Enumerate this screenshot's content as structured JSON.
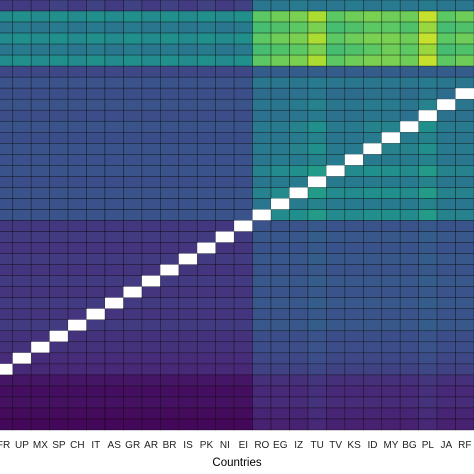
{
  "chart_data": {
    "type": "heatmap",
    "title": "",
    "xlabel": "Countries",
    "ylabel": "",
    "x_tick_labels": [
      "FR",
      "UP",
      "MX",
      "SP",
      "CH",
      "IT",
      "AS",
      "GR",
      "AR",
      "BR",
      "IS",
      "PK",
      "NI",
      "EI",
      "RO",
      "EG",
      "IZ",
      "TU",
      "TV",
      "KS",
      "ID",
      "MY",
      "BG",
      "PL",
      "JA",
      "RF"
    ],
    "colormap": "viridis",
    "diagonal_color": "#ffffff",
    "grid": true,
    "values": [
      [
        0.18,
        0.18,
        0.18,
        0.2,
        0.18,
        0.2,
        0.18,
        0.2,
        0.18,
        0.2,
        0.18,
        0.2,
        0.18,
        0.2,
        0.4,
        0.4,
        0.42,
        0.4,
        0.4,
        0.42,
        0.4,
        0.42,
        0.4,
        0.42,
        0.4,
        0.4
      ],
      [
        0.48,
        0.5,
        0.48,
        0.5,
        0.48,
        0.5,
        0.48,
        0.5,
        0.48,
        0.5,
        0.48,
        0.5,
        0.48,
        0.5,
        0.75,
        0.78,
        0.8,
        0.88,
        0.75,
        0.78,
        0.8,
        0.78,
        0.78,
        0.92,
        0.75,
        0.78
      ],
      [
        0.4,
        0.42,
        0.4,
        0.42,
        0.4,
        0.42,
        0.4,
        0.42,
        0.4,
        0.42,
        0.4,
        0.42,
        0.4,
        0.42,
        0.7,
        0.72,
        0.75,
        0.8,
        0.7,
        0.72,
        0.75,
        0.75,
        0.72,
        0.85,
        0.7,
        0.72
      ],
      [
        0.48,
        0.5,
        0.48,
        0.5,
        0.48,
        0.5,
        0.48,
        0.5,
        0.48,
        0.5,
        0.48,
        0.5,
        0.48,
        0.5,
        0.75,
        0.78,
        0.8,
        0.88,
        0.75,
        0.78,
        0.8,
        0.8,
        0.78,
        0.92,
        0.75,
        0.78
      ],
      [
        0.4,
        0.42,
        0.4,
        0.42,
        0.4,
        0.42,
        0.4,
        0.42,
        0.4,
        0.42,
        0.4,
        0.42,
        0.4,
        0.42,
        0.7,
        0.72,
        0.75,
        0.8,
        0.7,
        0.72,
        0.75,
        0.78,
        0.75,
        0.85,
        0.7,
        0.72
      ],
      [
        0.48,
        0.5,
        0.48,
        0.5,
        0.48,
        0.5,
        0.48,
        0.5,
        0.48,
        0.5,
        0.48,
        0.5,
        0.48,
        0.5,
        0.75,
        0.78,
        0.8,
        0.88,
        0.75,
        0.78,
        0.8,
        0.8,
        0.78,
        0.92,
        0.75,
        0.78
      ],
      [
        0.22,
        0.22,
        0.22,
        0.22,
        0.22,
        0.22,
        0.22,
        0.22,
        0.22,
        0.22,
        0.22,
        0.22,
        0.22,
        0.22,
        0.3,
        0.3,
        0.3,
        0.3,
        0.3,
        0.3,
        0.3,
        0.3,
        0.3,
        0.3,
        0.3,
        0.3
      ],
      [
        0.26,
        0.26,
        0.26,
        0.26,
        0.26,
        0.26,
        0.26,
        0.26,
        0.26,
        0.26,
        0.26,
        0.26,
        0.26,
        0.26,
        0.4,
        0.4,
        0.4,
        0.42,
        0.4,
        0.4,
        0.4,
        0.4,
        0.4,
        0.42,
        0.4,
        0.4
      ],
      [
        0.24,
        0.24,
        0.24,
        0.24,
        0.24,
        0.24,
        0.24,
        0.24,
        0.24,
        0.24,
        0.24,
        0.24,
        0.24,
        0.24,
        0.36,
        0.36,
        0.38,
        0.4,
        0.36,
        0.36,
        0.38,
        0.38,
        0.36,
        0.4,
        0.36,
        null
      ],
      [
        0.26,
        0.26,
        0.26,
        0.26,
        0.26,
        0.26,
        0.26,
        0.26,
        0.26,
        0.26,
        0.26,
        0.26,
        0.26,
        0.26,
        0.4,
        0.4,
        0.42,
        0.45,
        0.4,
        0.4,
        0.42,
        0.42,
        0.4,
        0.45,
        null,
        0.4
      ],
      [
        0.24,
        0.24,
        0.24,
        0.24,
        0.24,
        0.24,
        0.24,
        0.24,
        0.24,
        0.24,
        0.24,
        0.24,
        0.24,
        0.24,
        0.38,
        0.38,
        0.4,
        0.42,
        0.38,
        0.38,
        0.4,
        0.4,
        0.38,
        null,
        0.38,
        0.38
      ],
      [
        0.26,
        0.26,
        0.26,
        0.26,
        0.26,
        0.26,
        0.26,
        0.26,
        0.26,
        0.26,
        0.26,
        0.26,
        0.26,
        0.26,
        0.42,
        0.42,
        0.45,
        0.5,
        0.42,
        0.42,
        0.45,
        0.45,
        null,
        0.5,
        0.42,
        0.42
      ],
      [
        0.24,
        0.24,
        0.24,
        0.24,
        0.24,
        0.24,
        0.24,
        0.24,
        0.24,
        0.24,
        0.24,
        0.24,
        0.24,
        0.24,
        0.4,
        0.4,
        0.42,
        0.45,
        0.4,
        0.4,
        0.42,
        null,
        0.42,
        0.45,
        0.4,
        0.4
      ],
      [
        0.26,
        0.26,
        0.26,
        0.26,
        0.26,
        0.26,
        0.26,
        0.26,
        0.26,
        0.26,
        0.26,
        0.26,
        0.26,
        0.26,
        0.42,
        0.42,
        0.45,
        0.5,
        0.42,
        0.42,
        null,
        0.45,
        0.45,
        0.5,
        0.42,
        0.42
      ],
      [
        0.25,
        0.25,
        0.25,
        0.25,
        0.25,
        0.25,
        0.25,
        0.25,
        0.25,
        0.25,
        0.25,
        0.25,
        0.25,
        0.25,
        0.4,
        0.42,
        0.42,
        0.45,
        0.42,
        null,
        0.42,
        0.42,
        0.42,
        0.45,
        0.4,
        0.4
      ],
      [
        0.26,
        0.26,
        0.26,
        0.26,
        0.26,
        0.26,
        0.26,
        0.26,
        0.26,
        0.26,
        0.26,
        0.26,
        0.26,
        0.26,
        0.45,
        0.48,
        0.5,
        0.55,
        null,
        0.48,
        0.5,
        0.5,
        0.48,
        0.55,
        0.45,
        0.45
      ],
      [
        0.24,
        0.24,
        0.24,
        0.24,
        0.24,
        0.24,
        0.24,
        0.24,
        0.24,
        0.24,
        0.24,
        0.24,
        0.24,
        0.24,
        0.4,
        0.42,
        0.42,
        null,
        0.42,
        0.42,
        0.42,
        0.42,
        0.42,
        0.45,
        0.4,
        0.4
      ],
      [
        0.26,
        0.26,
        0.26,
        0.26,
        0.26,
        0.26,
        0.26,
        0.26,
        0.26,
        0.26,
        0.26,
        0.26,
        0.26,
        0.26,
        0.45,
        0.48,
        null,
        0.55,
        0.48,
        0.48,
        0.5,
        0.5,
        0.48,
        0.55,
        0.45,
        0.45
      ],
      [
        0.25,
        0.25,
        0.25,
        0.25,
        0.25,
        0.25,
        0.25,
        0.25,
        0.25,
        0.25,
        0.25,
        0.25,
        0.25,
        0.25,
        0.4,
        null,
        0.42,
        0.45,
        0.42,
        0.42,
        0.42,
        0.42,
        0.42,
        0.45,
        0.4,
        0.4
      ],
      [
        0.26,
        0.26,
        0.26,
        0.26,
        0.26,
        0.26,
        0.26,
        0.26,
        0.26,
        0.26,
        0.26,
        0.26,
        0.26,
        0.26,
        null,
        0.48,
        0.5,
        0.55,
        0.48,
        0.48,
        0.5,
        0.5,
        0.48,
        0.55,
        0.45,
        0.45
      ],
      [
        0.17,
        0.17,
        0.17,
        0.17,
        0.17,
        0.17,
        0.17,
        0.17,
        0.17,
        0.17,
        0.17,
        0.17,
        0.17,
        null,
        0.26,
        0.26,
        0.26,
        0.28,
        0.26,
        0.26,
        0.26,
        0.26,
        0.26,
        0.28,
        0.26,
        0.26
      ],
      [
        0.18,
        0.18,
        0.18,
        0.18,
        0.18,
        0.18,
        0.18,
        0.18,
        0.18,
        0.18,
        0.18,
        0.18,
        null,
        0.18,
        0.28,
        0.28,
        0.28,
        0.3,
        0.28,
        0.28,
        0.28,
        0.28,
        0.28,
        0.3,
        0.28,
        0.28
      ],
      [
        0.16,
        0.16,
        0.16,
        0.16,
        0.16,
        0.16,
        0.16,
        0.16,
        0.16,
        0.16,
        0.16,
        null,
        0.16,
        0.16,
        0.26,
        0.26,
        0.26,
        0.28,
        0.26,
        0.26,
        0.26,
        0.26,
        0.26,
        0.28,
        0.26,
        0.26
      ],
      [
        0.18,
        0.18,
        0.18,
        0.18,
        0.18,
        0.18,
        0.18,
        0.18,
        0.18,
        0.18,
        null,
        0.18,
        0.18,
        0.18,
        0.28,
        0.28,
        0.28,
        0.3,
        0.28,
        0.28,
        0.28,
        0.28,
        0.28,
        0.3,
        0.28,
        0.28
      ],
      [
        0.16,
        0.16,
        0.16,
        0.16,
        0.16,
        0.16,
        0.16,
        0.16,
        0.16,
        null,
        0.16,
        0.16,
        0.16,
        0.16,
        0.26,
        0.26,
        0.26,
        0.28,
        0.26,
        0.26,
        0.26,
        0.26,
        0.26,
        0.28,
        0.26,
        0.26
      ],
      [
        0.18,
        0.18,
        0.18,
        0.18,
        0.18,
        0.18,
        0.18,
        0.18,
        null,
        0.18,
        0.18,
        0.18,
        0.18,
        0.18,
        0.28,
        0.28,
        0.28,
        0.3,
        0.28,
        0.28,
        0.28,
        0.28,
        0.28,
        0.3,
        0.28,
        0.28
      ],
      [
        0.16,
        0.16,
        0.16,
        0.16,
        0.16,
        0.16,
        0.16,
        null,
        0.16,
        0.16,
        0.16,
        0.16,
        0.16,
        0.16,
        0.26,
        0.26,
        0.26,
        0.28,
        0.26,
        0.26,
        0.26,
        0.26,
        0.26,
        0.28,
        0.26,
        0.26
      ],
      [
        0.18,
        0.18,
        0.18,
        0.18,
        0.18,
        0.18,
        null,
        0.18,
        0.18,
        0.18,
        0.18,
        0.18,
        0.18,
        0.18,
        0.28,
        0.28,
        0.28,
        0.3,
        0.28,
        0.28,
        0.28,
        0.28,
        0.28,
        0.3,
        0.28,
        0.28
      ],
      [
        0.16,
        0.16,
        0.16,
        0.16,
        0.16,
        null,
        0.16,
        0.16,
        0.16,
        0.16,
        0.16,
        0.16,
        0.16,
        0.16,
        0.26,
        0.26,
        0.26,
        0.28,
        0.26,
        0.26,
        0.26,
        0.26,
        0.26,
        0.28,
        0.26,
        0.26
      ],
      [
        0.18,
        0.18,
        0.18,
        0.18,
        null,
        0.18,
        0.18,
        0.18,
        0.18,
        0.18,
        0.18,
        0.18,
        0.18,
        0.18,
        0.28,
        0.28,
        0.28,
        0.3,
        0.28,
        0.28,
        0.28,
        0.28,
        0.28,
        0.3,
        0.28,
        0.28
      ],
      [
        0.15,
        0.15,
        0.15,
        null,
        0.15,
        0.15,
        0.15,
        0.15,
        0.15,
        0.15,
        0.15,
        0.15,
        0.15,
        0.15,
        0.24,
        0.24,
        0.24,
        0.26,
        0.24,
        0.24,
        0.24,
        0.24,
        0.24,
        0.26,
        0.24,
        0.24
      ],
      [
        0.15,
        0.15,
        null,
        0.15,
        0.15,
        0.15,
        0.15,
        0.15,
        0.15,
        0.15,
        0.15,
        0.15,
        0.15,
        0.15,
        0.24,
        0.24,
        0.24,
        0.26,
        0.24,
        0.24,
        0.24,
        0.24,
        0.24,
        0.26,
        0.24,
        0.24
      ],
      [
        0.13,
        null,
        0.13,
        0.13,
        0.13,
        0.13,
        0.13,
        0.13,
        0.13,
        0.13,
        0.13,
        0.13,
        0.13,
        0.13,
        0.22,
        0.22,
        0.22,
        0.24,
        0.22,
        0.22,
        0.22,
        0.22,
        0.22,
        0.24,
        0.22,
        0.22
      ],
      [
        null,
        0.12,
        0.12,
        0.12,
        0.12,
        0.12,
        0.12,
        0.12,
        0.12,
        0.12,
        0.12,
        0.12,
        0.12,
        0.12,
        0.2,
        0.2,
        0.2,
        0.22,
        0.2,
        0.2,
        0.2,
        0.2,
        0.2,
        0.22,
        0.2,
        0.2
      ],
      [
        0.06,
        0.06,
        0.06,
        0.06,
        0.06,
        0.06,
        0.06,
        0.06,
        0.06,
        0.06,
        0.06,
        0.06,
        0.06,
        0.06,
        0.14,
        0.14,
        0.14,
        0.16,
        0.14,
        0.14,
        0.14,
        0.14,
        0.14,
        0.16,
        0.14,
        0.14
      ],
      [
        0.04,
        0.04,
        0.04,
        0.04,
        0.04,
        0.04,
        0.04,
        0.04,
        0.04,
        0.04,
        0.04,
        0.04,
        0.04,
        0.04,
        0.12,
        0.12,
        0.12,
        0.14,
        0.12,
        0.12,
        0.12,
        0.12,
        0.12,
        0.14,
        0.12,
        0.12
      ],
      [
        0.05,
        0.05,
        0.05,
        0.05,
        0.05,
        0.05,
        0.05,
        0.05,
        0.05,
        0.05,
        0.05,
        0.05,
        0.05,
        0.05,
        0.13,
        0.13,
        0.13,
        0.15,
        0.13,
        0.13,
        0.13,
        0.13,
        0.13,
        0.15,
        0.13,
        0.13
      ],
      [
        0.03,
        0.03,
        0.03,
        0.03,
        0.03,
        0.03,
        0.03,
        0.03,
        0.03,
        0.03,
        0.03,
        0.03,
        0.03,
        0.03,
        0.11,
        0.11,
        0.11,
        0.13,
        0.11,
        0.11,
        0.11,
        0.11,
        0.11,
        0.13,
        0.11,
        0.11
      ],
      [
        0.02,
        0.02,
        0.02,
        0.02,
        0.02,
        0.02,
        0.02,
        0.02,
        0.02,
        0.02,
        0.02,
        0.02,
        0.02,
        0.02,
        0.1,
        0.1,
        0.1,
        0.12,
        0.1,
        0.1,
        0.1,
        0.1,
        0.1,
        0.12,
        0.1,
        0.1
      ]
    ]
  }
}
